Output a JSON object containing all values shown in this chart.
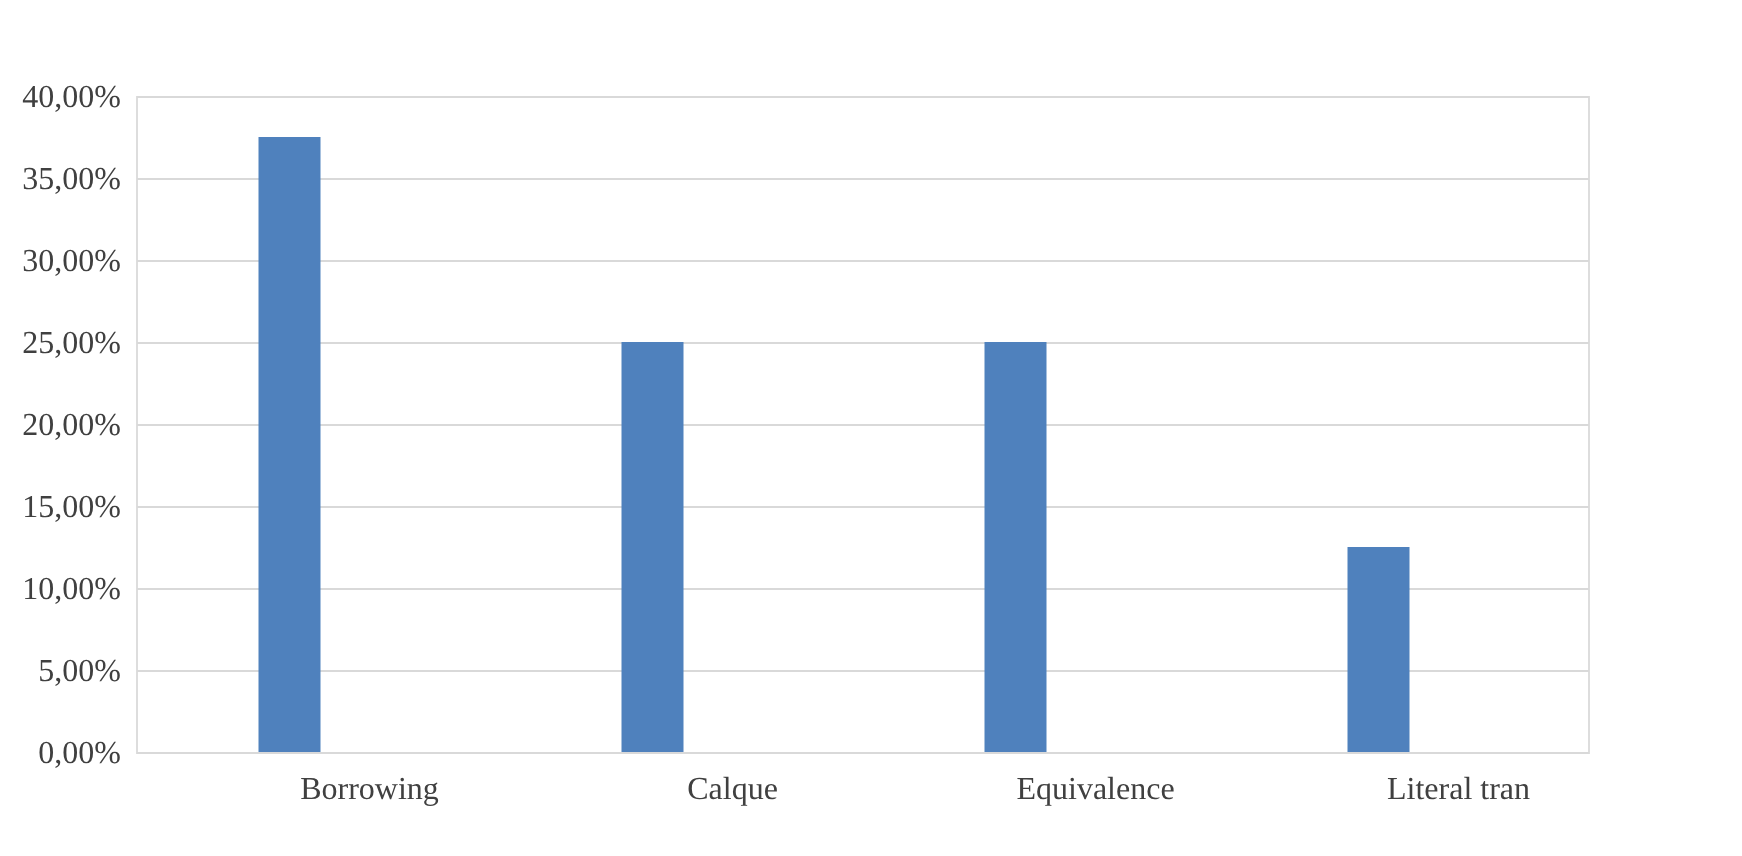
{
  "chart_data": {
    "type": "bar",
    "categories": [
      "Borrowing",
      "Calque",
      "Equivalence",
      "Literal tran"
    ],
    "values": [
      37.5,
      25,
      25,
      12.5
    ],
    "color": "#4f81bd",
    "ylim": [
      0,
      40
    ],
    "yticks": [
      {
        "value": 0,
        "label": "0,00%"
      },
      {
        "value": 5,
        "label": "5,00%"
      },
      {
        "value": 10,
        "label": "10,00%"
      },
      {
        "value": 15,
        "label": "15,00%"
      },
      {
        "value": 20,
        "label": "20,00%"
      },
      {
        "value": 25,
        "label": "25,00%"
      },
      {
        "value": 30,
        "label": "30,00%"
      },
      {
        "value": 35,
        "label": "35,00%"
      },
      {
        "value": 40,
        "label": "40,00%"
      }
    ],
    "grid": "y"
  }
}
